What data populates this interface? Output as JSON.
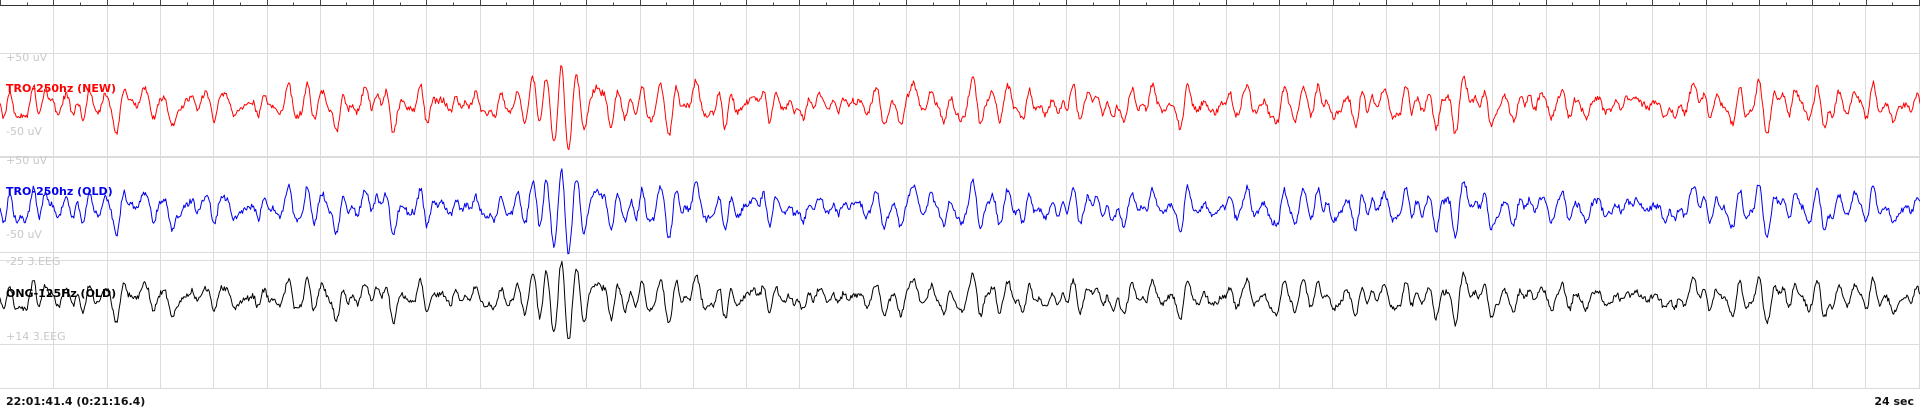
{
  "chart_data": {
    "type": "line",
    "grid": true,
    "x_unit": "sec",
    "window_seconds": 24,
    "start_time": "22:01:41.4 (0:21:16.4)",
    "duration_label": "24 sec",
    "channels": [
      {
        "name": "TRO-250hz (NEW)",
        "color": "#ff0000",
        "scale_top": "+50 uV",
        "scale_bottom": "-50 uV",
        "amplitude_uv": 50,
        "seed": 11,
        "events": [
          {
            "t": 3.6,
            "amp": 0.35,
            "w": 0.12
          },
          {
            "t": 6.8,
            "amp": 0.8,
            "w": 0.35
          },
          {
            "t": 7.15,
            "amp": 1.1,
            "w": 0.45
          },
          {
            "t": 8.0,
            "amp": 0.6,
            "w": 0.3
          },
          {
            "t": 20.8,
            "amp": 0.45,
            "w": 0.2
          },
          {
            "t": 21.1,
            "amp": 0.35,
            "w": 0.2
          }
        ]
      },
      {
        "name": "TRO-250hz (OLD)",
        "color": "#0000ee",
        "scale_top": "+50 uV",
        "scale_bottom": "-50 uV",
        "amplitude_uv": 50,
        "seed": 11,
        "events": [
          {
            "t": 3.6,
            "amp": 0.35,
            "w": 0.12
          },
          {
            "t": 6.8,
            "amp": 0.8,
            "w": 0.35
          },
          {
            "t": 7.15,
            "amp": 1.1,
            "w": 0.45
          },
          {
            "t": 8.0,
            "amp": 0.6,
            "w": 0.3
          },
          {
            "t": 20.8,
            "amp": 0.45,
            "w": 0.2
          },
          {
            "t": 21.1,
            "amp": 0.35,
            "w": 0.2
          }
        ]
      },
      {
        "name": "ONG-125Hz (OLD)",
        "color": "#000000",
        "scale_top": "-25 3.EEG",
        "scale_bottom": "+14 3.EEG",
        "amplitude_uv": 25,
        "seed": 11,
        "events": [
          {
            "t": 3.6,
            "amp": 0.35,
            "w": 0.12
          },
          {
            "t": 6.8,
            "amp": 0.9,
            "w": 0.35
          },
          {
            "t": 7.15,
            "amp": 1.2,
            "w": 0.45
          },
          {
            "t": 8.0,
            "amp": 0.55,
            "w": 0.3
          },
          {
            "t": 20.8,
            "amp": 0.5,
            "w": 0.2
          },
          {
            "t": 21.1,
            "amp": 0.4,
            "w": 0.2
          }
        ]
      }
    ]
  }
}
